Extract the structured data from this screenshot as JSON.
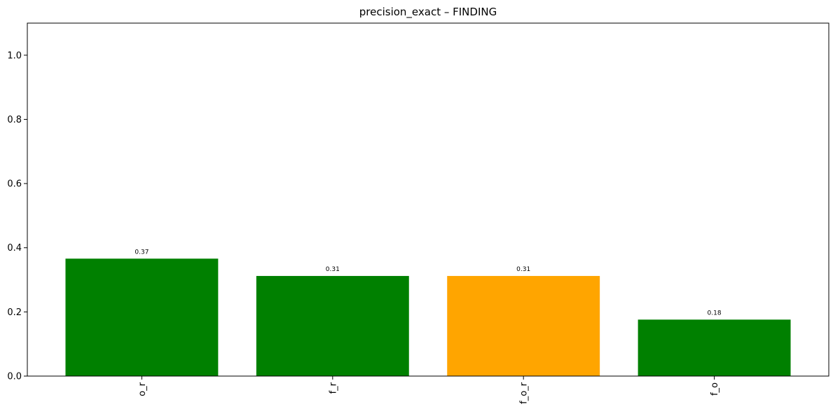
{
  "chart_data": {
    "type": "bar",
    "title": "precision_exact – FINDING",
    "xlabel": "",
    "ylabel": "",
    "categories": [
      "o_r",
      "f_r",
      "f_o_r",
      "f_o"
    ],
    "values": [
      0.366,
      0.312,
      0.312,
      0.176
    ],
    "value_labels": [
      "0.37",
      "0.31",
      "0.31",
      "0.18"
    ],
    "bar_colors": [
      "#008000",
      "#008000",
      "#ffa500",
      "#008000"
    ],
    "ylim": [
      0,
      1.1
    ],
    "yticks": [
      0.0,
      0.2,
      0.4,
      0.6,
      0.8,
      1.0
    ],
    "ytick_labels": [
      "0.0",
      "0.2",
      "0.4",
      "0.6",
      "0.8",
      "1.0"
    ],
    "xtick_rotation": "vertical",
    "grid": false,
    "legend": "none"
  }
}
